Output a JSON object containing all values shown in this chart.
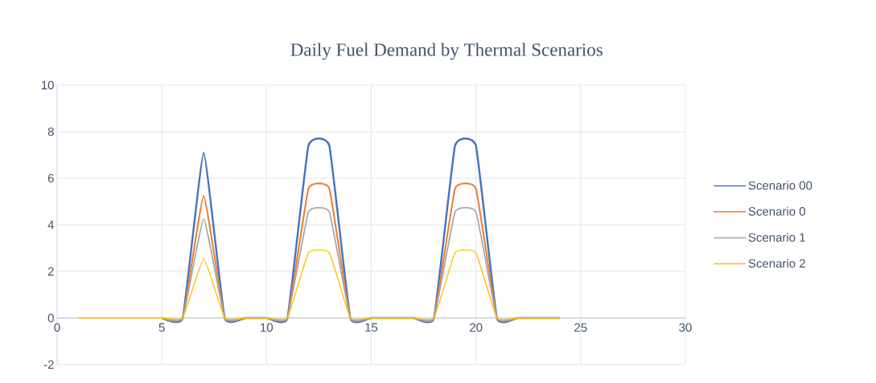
{
  "chart_data": {
    "type": "line",
    "title": "Daily Fuel Demand by Thermal Scenarios",
    "x": [
      1,
      2,
      3,
      4,
      5,
      6,
      7,
      8,
      9,
      10,
      11,
      12,
      13,
      14,
      15,
      16,
      17,
      18,
      19,
      20,
      21,
      22,
      23,
      24
    ],
    "series": [
      {
        "name": "Scenario 00",
        "color": "#4472c4",
        "values": [
          null,
          null,
          null,
          null,
          0,
          0,
          7.1,
          0,
          0,
          0,
          0,
          7.4,
          7.4,
          0,
          0,
          0,
          0,
          0,
          7.4,
          7.4,
          0,
          0,
          0,
          0
        ]
      },
      {
        "name": "Scenario 0",
        "color": "#ed7d31",
        "values": [
          null,
          null,
          null,
          null,
          0,
          0,
          5.25,
          0,
          0,
          0,
          0,
          5.55,
          5.55,
          0,
          0,
          0,
          0,
          0,
          5.55,
          5.55,
          0,
          0,
          0,
          0
        ]
      },
      {
        "name": "Scenario 1",
        "color": "#a5a5a5",
        "values": [
          null,
          null,
          null,
          null,
          0,
          0,
          4.25,
          0,
          0,
          0,
          0,
          4.55,
          4.55,
          0,
          0,
          0,
          0,
          0,
          4.55,
          4.55,
          0,
          0,
          0,
          0
        ]
      },
      {
        "name": "Scenario 2",
        "color": "#ffc000",
        "values": [
          0,
          0,
          0,
          0,
          0,
          0,
          2.55,
          0,
          0,
          0,
          0,
          2.8,
          2.8,
          0,
          0,
          0,
          0,
          0,
          2.8,
          2.8,
          0,
          0,
          0,
          0
        ]
      }
    ],
    "xlim": [
      0,
      30
    ],
    "xticks": [
      0,
      5,
      10,
      15,
      20,
      25,
      30
    ],
    "ylim": [
      -2,
      10
    ],
    "yticks": [
      -2,
      0,
      2,
      4,
      6,
      8,
      10
    ],
    "grid": true,
    "legend": "right",
    "marker": "none",
    "line_style": "solid"
  }
}
